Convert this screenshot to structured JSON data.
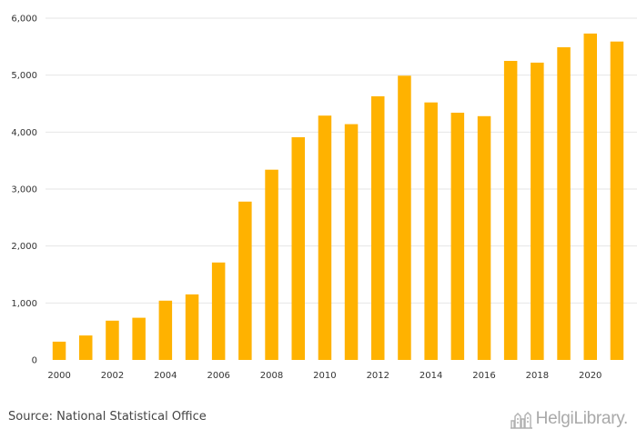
{
  "chart_data": {
    "type": "bar",
    "title": "",
    "xlabel": "",
    "ylabel": "",
    "ylim": [
      0,
      6000
    ],
    "yticks": [
      0,
      1000,
      2000,
      3000,
      4000,
      5000,
      6000
    ],
    "ytick_labels": [
      "0",
      "1,000",
      "2,000",
      "3,000",
      "4,000",
      "5,000",
      "6,000"
    ],
    "categories": [
      "2000",
      "2001",
      "2002",
      "2003",
      "2004",
      "2005",
      "2006",
      "2007",
      "2008",
      "2009",
      "2010",
      "2011",
      "2012",
      "2013",
      "2014",
      "2015",
      "2016",
      "2017",
      "2018",
      "2019",
      "2020",
      "2021"
    ],
    "xtick_labels": [
      "2000",
      "2002",
      "2004",
      "2006",
      "2008",
      "2010",
      "2012",
      "2014",
      "2016",
      "2018",
      "2020"
    ],
    "values": [
      320,
      430,
      690,
      740,
      1040,
      1150,
      1710,
      2780,
      3340,
      3910,
      4290,
      4140,
      4630,
      4990,
      4520,
      4340,
      4280,
      5250,
      5220,
      5490,
      5730,
      5590
    ],
    "bar_color": "#FFB200",
    "grid": true
  },
  "footer": {
    "source": "Source: National Statistical Office",
    "brand": "HelgiLibrary."
  },
  "icons": {
    "brand_logo": "skyline-logo-icon"
  }
}
